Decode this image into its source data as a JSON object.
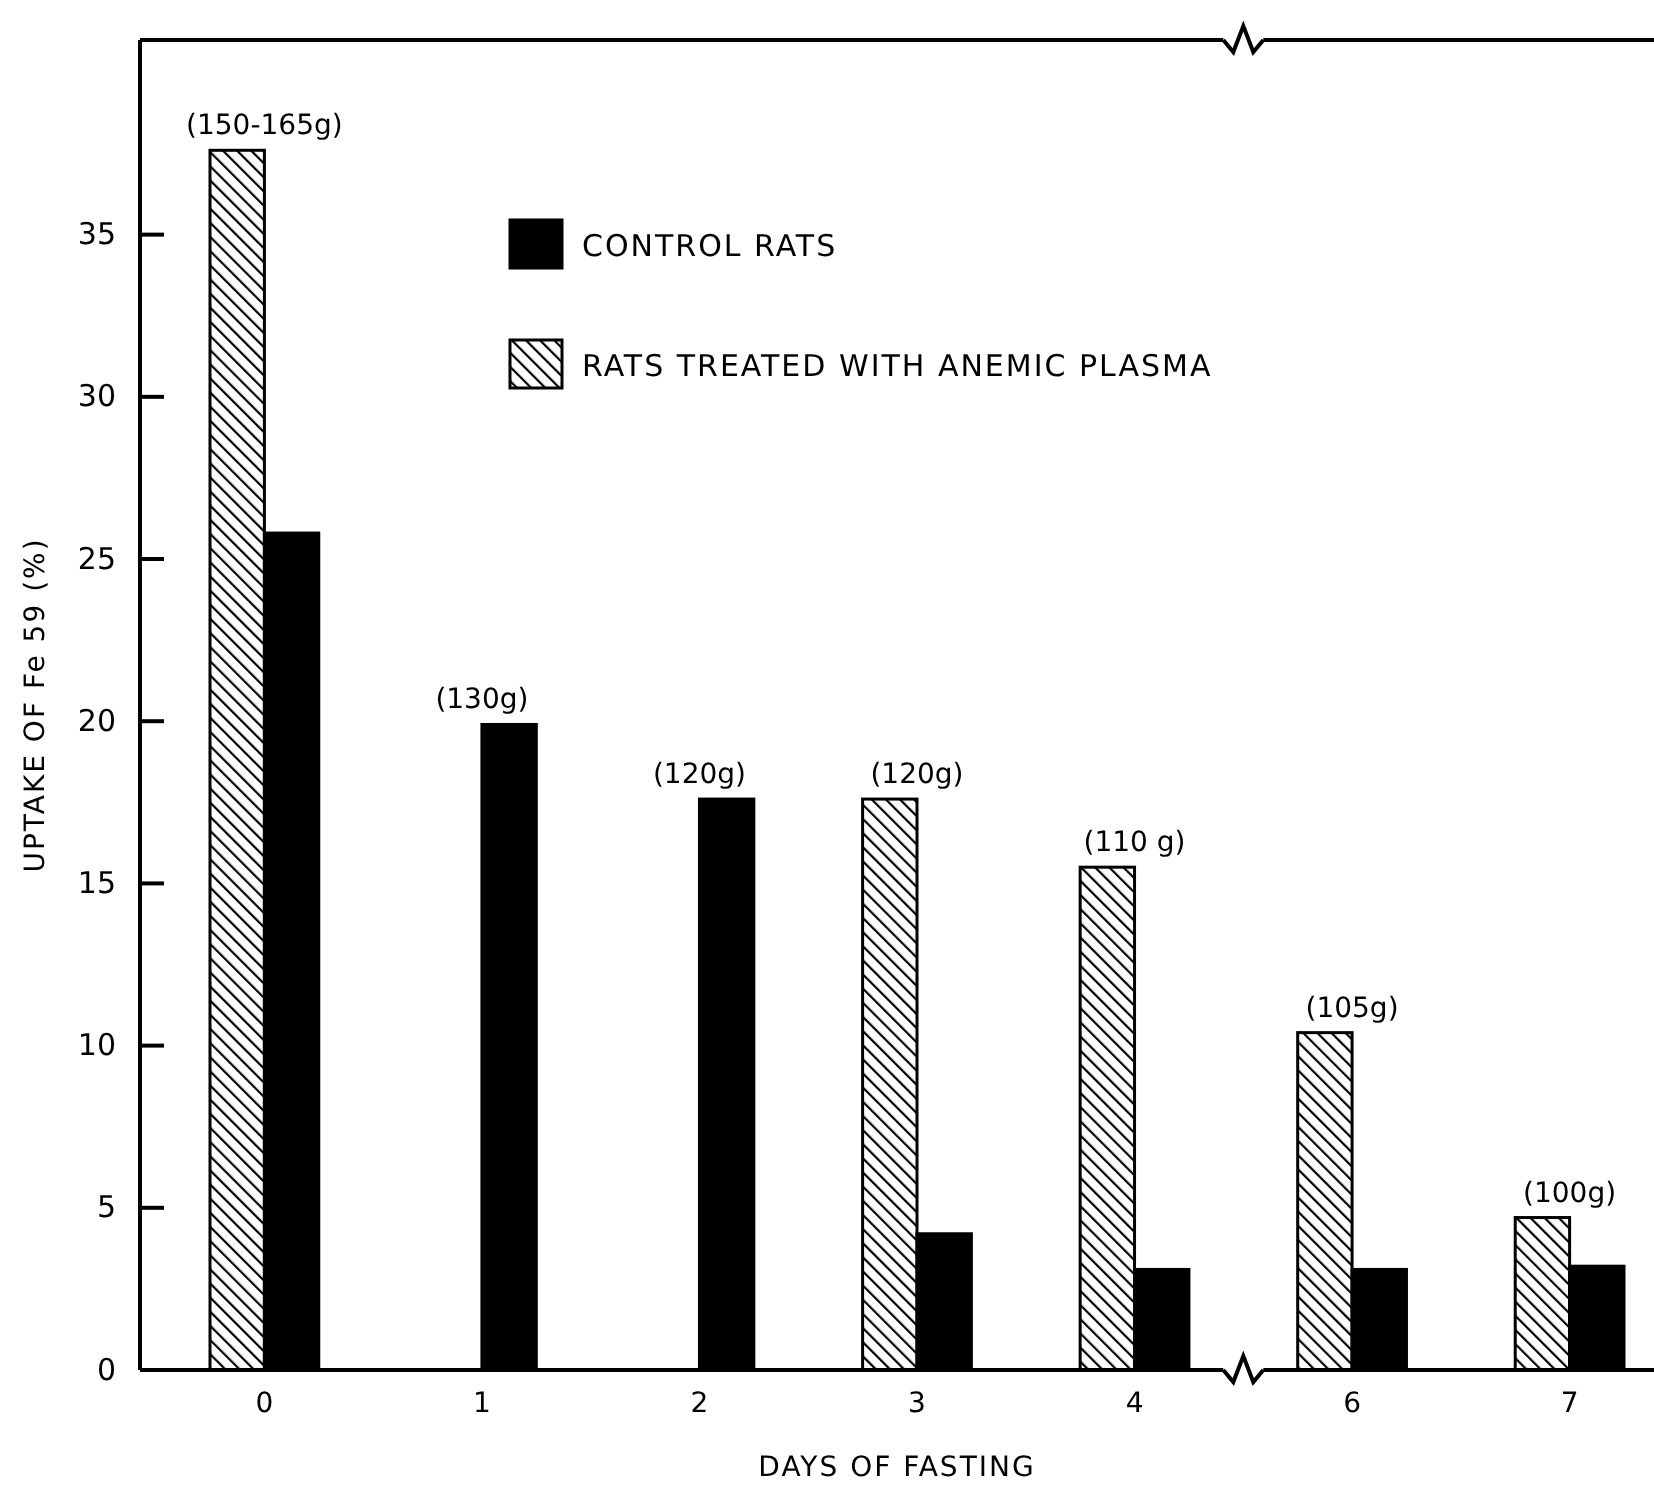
{
  "chart_data": {
    "type": "bar",
    "xlabel": "DAYS OF FASTING",
    "ylabel": "UPTAKE OF Fe 59 (%)",
    "categories": [
      "0",
      "1",
      "2",
      "3",
      "4",
      "6",
      "7"
    ],
    "series": [
      {
        "name": "RATS TREATED WITH ANEMIC PLASMA",
        "color": "#000000",
        "values": [
          37.6,
          null,
          null,
          17.6,
          15.5,
          10.4,
          4.7
        ]
      },
      {
        "name": "CONTROL RATS",
        "color": "#000000",
        "values": [
          25.8,
          19.9,
          17.6,
          4.2,
          3.1,
          3.1,
          3.2
        ]
      }
    ],
    "ylim": [
      0,
      41
    ],
    "yticks": [
      0,
      5,
      10,
      15,
      20,
      25,
      30,
      35
    ],
    "legend": "top",
    "annotations": [
      {
        "text": "(150-165g)",
        "x": "0",
        "y": 37.6
      },
      {
        "text": "(130g)",
        "x": "1",
        "y": 19.9
      },
      {
        "text": "(120g)",
        "x": "2",
        "y": 17.6
      },
      {
        "text": "(120g)",
        "x": "3",
        "y": 17.6
      },
      {
        "text": "(110 g)",
        "x": "4",
        "y": 15.5
      },
      {
        "text": "(105g)",
        "x": "6",
        "y": 10.4
      },
      {
        "text": "(100g)",
        "x": "7",
        "y": 4.7
      }
    ]
  }
}
